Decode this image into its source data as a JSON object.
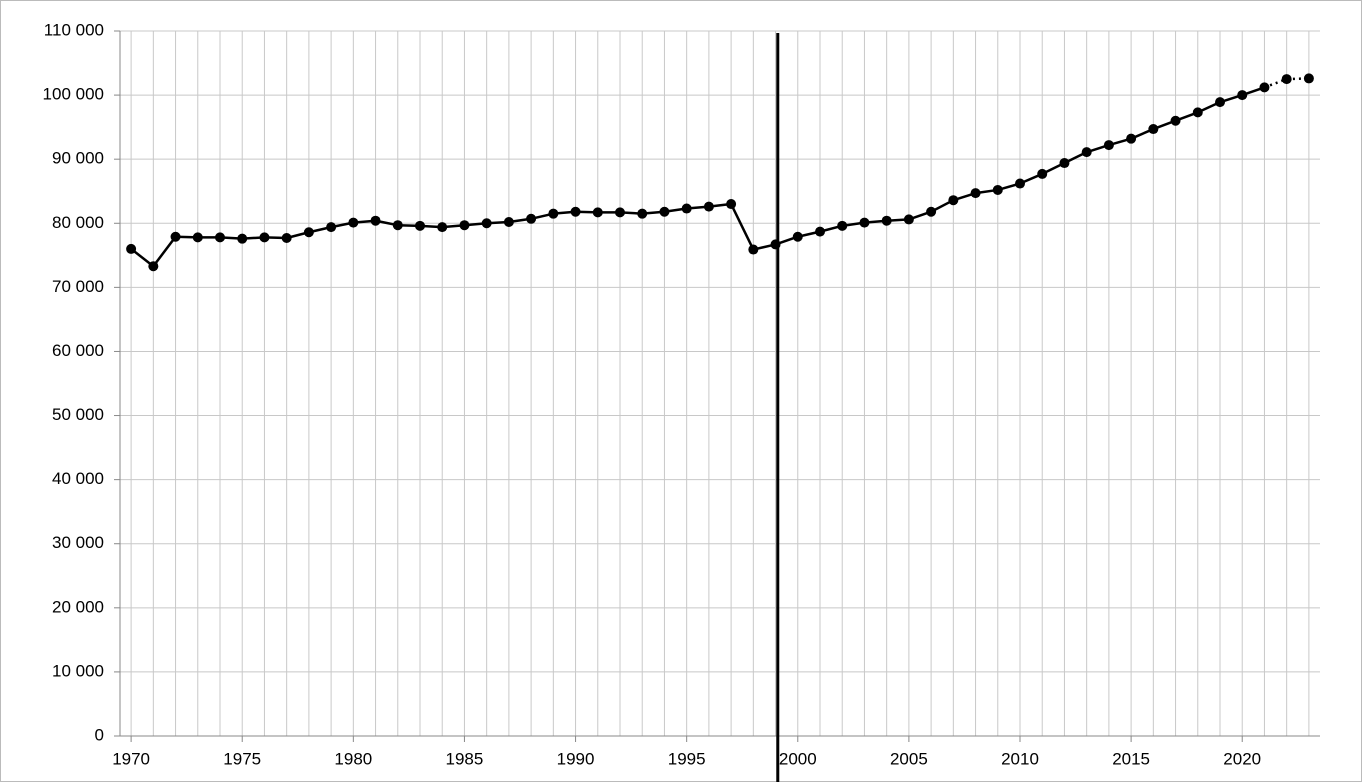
{
  "chart_data": {
    "type": "line",
    "x": [
      1970,
      1971,
      1972,
      1973,
      1974,
      1975,
      1976,
      1977,
      1978,
      1979,
      1980,
      1981,
      1982,
      1983,
      1984,
      1985,
      1986,
      1987,
      1988,
      1989,
      1990,
      1991,
      1992,
      1993,
      1994,
      1995,
      1996,
      1997,
      1998,
      1999,
      2000,
      2001,
      2002,
      2003,
      2004,
      2005,
      2006,
      2007,
      2008,
      2009,
      2010,
      2011,
      2012,
      2013,
      2014,
      2015,
      2016,
      2017,
      2018,
      2019,
      2020,
      2021,
      2022,
      2023
    ],
    "series": [
      {
        "color": "#000000",
        "dotted_from": 2021,
        "values": [
          76000,
          73300,
          77900,
          77800,
          77800,
          77600,
          77800,
          77700,
          78600,
          79400,
          80100,
          80400,
          79700,
          79600,
          79400,
          79700,
          80000,
          80200,
          80700,
          81500,
          81800,
          81700,
          81700,
          81500,
          81800,
          82300,
          82600,
          83000,
          75900,
          76700,
          77900,
          78700,
          79600,
          80100,
          80400,
          80600,
          81800,
          83600,
          84700,
          85200,
          86200,
          87700,
          89400,
          91100,
          92200,
          93200,
          94700,
          96000,
          97300,
          98900,
          100000,
          101200,
          102500,
          102600
        ]
      }
    ],
    "vline": 1999.1,
    "xlim": [
      1969.5,
      2023.5
    ],
    "xticks": [
      1970,
      1975,
      1980,
      1985,
      1990,
      1995,
      2000,
      2005,
      2010,
      2015,
      2020
    ],
    "ylim": [
      0,
      110000
    ],
    "yticks": [
      0,
      {
        "value": 10000,
        "label": "10 000"
      },
      {
        "value": 20000,
        "label": "20 000"
      },
      {
        "value": 30000,
        "label": "30 000"
      },
      {
        "value": 40000,
        "label": "40 000"
      },
      {
        "value": 50000,
        "label": "50 000"
      },
      {
        "value": 60000,
        "label": "60 000"
      },
      {
        "value": 70000,
        "label": "70 000"
      },
      {
        "value": 80000,
        "label": "80 000"
      },
      {
        "value": 90000,
        "label": "90 000"
      },
      {
        "value": 100000,
        "label": "100 000"
      },
      {
        "value": 110000,
        "label": "110 000"
      }
    ],
    "grid": true
  }
}
